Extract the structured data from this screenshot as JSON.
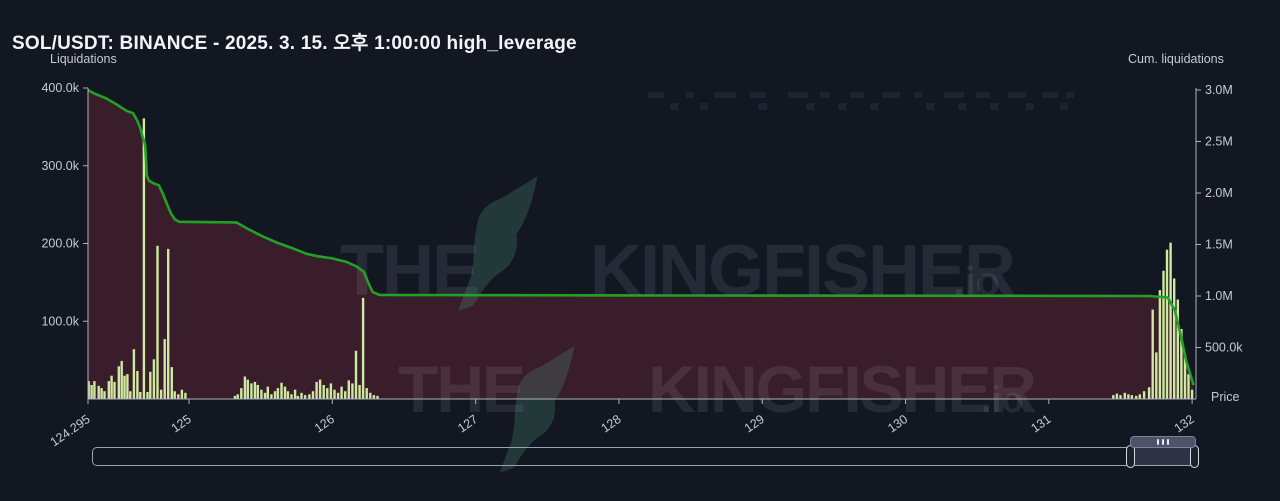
{
  "header": {
    "title": "SOL/USDT: BINANCE - 2025. 3. 15. 오후 1:00:00 high_leverage"
  },
  "colors": {
    "background": "#131722",
    "bar": "#cfe8a2",
    "line": "#21a126",
    "area_fill": "#3a1d2a",
    "axis": "#aab0c0",
    "tick_text": "#c6cad4",
    "watermark_text": "rgba(210,217,232,0.10)",
    "watermark_bird": "rgba(80,145,120,0.28)",
    "dash_decoration": "#1e2334"
  },
  "watermark": {
    "upper": {
      "pre": "THE",
      "main": "KINGFISHER",
      "suffix": ".io"
    },
    "lower": {
      "pre": "THE",
      "main": "KINGFISHER",
      "suffix": ".io"
    }
  },
  "chart_data": {
    "type": "mixed",
    "title": "SOL/USDT: BINANCE - 2025. 3. 15. 오후 1:00:00 high_leverage",
    "xlabel": "Price",
    "legend_position": "none",
    "grid": false,
    "x_axis": {
      "label": "Price",
      "range": [
        124.295,
        132.03
      ],
      "ticks": [
        {
          "label": "124.295",
          "value": 124.295
        },
        {
          "label": "125",
          "value": 125
        },
        {
          "label": "126",
          "value": 126
        },
        {
          "label": "127",
          "value": 127
        },
        {
          "label": "128",
          "value": 128
        },
        {
          "label": "129",
          "value": 129
        },
        {
          "label": "130",
          "value": 130
        },
        {
          "label": "131",
          "value": 131
        },
        {
          "label": "132",
          "value": 132
        }
      ]
    },
    "left_axis": {
      "label": "Liquidations",
      "unit": "thousand",
      "range": [
        0,
        400000
      ],
      "ticks": [
        {
          "label": "400.0k",
          "value": 400
        },
        {
          "label": "300.0k",
          "value": 300
        },
        {
          "label": "200.0k",
          "value": 200
        },
        {
          "label": "100.0k",
          "value": 100
        }
      ]
    },
    "right_axis": {
      "label": "Cum. liquidations",
      "unit": "million",
      "range": [
        0,
        3000000
      ],
      "ticks": [
        {
          "label": "3.0M",
          "value": 3.0
        },
        {
          "label": "2.5M",
          "value": 2.5
        },
        {
          "label": "2.0M",
          "value": 2.0
        },
        {
          "label": "1.5M",
          "value": 1.5
        },
        {
          "label": "1.0M",
          "value": 1.0
        },
        {
          "label": "500.0k",
          "value": 0.5
        }
      ]
    },
    "series": [
      {
        "name": "Cum. liquidations",
        "type": "area-line",
        "axis": "right",
        "points": [
          [
            124.295,
            3.0
          ],
          [
            124.34,
            2.965
          ],
          [
            124.42,
            2.92
          ],
          [
            124.5,
            2.855
          ],
          [
            124.56,
            2.8
          ],
          [
            124.61,
            2.775
          ],
          [
            124.64,
            2.7
          ],
          [
            124.66,
            2.63
          ],
          [
            124.675,
            2.55
          ],
          [
            124.69,
            2.49
          ],
          [
            124.695,
            2.45
          ],
          [
            124.705,
            2.17
          ],
          [
            124.72,
            2.12
          ],
          [
            124.75,
            2.095
          ],
          [
            124.79,
            2.075
          ],
          [
            124.82,
            1.985
          ],
          [
            124.85,
            1.88
          ],
          [
            124.875,
            1.8
          ],
          [
            124.9,
            1.745
          ],
          [
            124.93,
            1.72
          ],
          [
            125.33,
            1.715
          ],
          [
            125.42,
            1.645
          ],
          [
            125.52,
            1.575
          ],
          [
            125.62,
            1.515
          ],
          [
            125.72,
            1.465
          ],
          [
            125.82,
            1.41
          ],
          [
            125.9,
            1.385
          ],
          [
            126.0,
            1.365
          ],
          [
            126.1,
            1.33
          ],
          [
            126.17,
            1.285
          ],
          [
            126.22,
            1.235
          ],
          [
            126.25,
            1.13
          ],
          [
            126.28,
            1.04
          ],
          [
            126.33,
            1.01
          ],
          [
            128.5,
            1.005
          ],
          [
            131.7,
            1.0
          ],
          [
            131.83,
            0.985
          ],
          [
            131.88,
            0.86
          ],
          [
            131.92,
            0.62
          ],
          [
            131.96,
            0.36
          ],
          [
            132.01,
            0.135
          ]
        ]
      },
      {
        "name": "Liquidations",
        "type": "bar",
        "axis": "left",
        "points": [
          [
            124.3,
            23
          ],
          [
            124.32,
            18
          ],
          [
            124.34,
            23
          ],
          [
            124.37,
            17
          ],
          [
            124.39,
            14
          ],
          [
            124.41,
            10
          ],
          [
            124.44,
            23
          ],
          [
            124.46,
            30
          ],
          [
            124.48,
            22
          ],
          [
            124.51,
            42
          ],
          [
            124.53,
            49
          ],
          [
            124.55,
            30
          ],
          [
            124.57,
            32
          ],
          [
            124.59,
            10
          ],
          [
            124.615,
            64
          ],
          [
            124.64,
            36
          ],
          [
            124.66,
            9
          ],
          [
            124.685,
            361
          ],
          [
            124.71,
            9
          ],
          [
            124.73,
            35
          ],
          [
            124.755,
            51
          ],
          [
            124.78,
            197
          ],
          [
            124.805,
            12
          ],
          [
            124.83,
            77
          ],
          [
            124.855,
            193
          ],
          [
            124.88,
            41
          ],
          [
            124.9,
            10
          ],
          [
            124.925,
            6
          ],
          [
            124.95,
            12
          ],
          [
            124.975,
            8
          ],
          [
            125.32,
            4
          ],
          [
            125.34,
            6
          ],
          [
            125.365,
            14
          ],
          [
            125.39,
            29
          ],
          [
            125.41,
            25
          ],
          [
            125.435,
            20
          ],
          [
            125.46,
            22
          ],
          [
            125.48,
            18
          ],
          [
            125.505,
            12
          ],
          [
            125.53,
            8
          ],
          [
            125.55,
            16
          ],
          [
            125.575,
            6
          ],
          [
            125.6,
            10
          ],
          [
            125.62,
            14
          ],
          [
            125.645,
            21
          ],
          [
            125.67,
            16
          ],
          [
            125.69,
            10
          ],
          [
            125.715,
            6
          ],
          [
            125.74,
            12
          ],
          [
            125.76,
            4
          ],
          [
            125.785,
            8
          ],
          [
            125.81,
            5
          ],
          [
            125.84,
            6
          ],
          [
            125.865,
            10
          ],
          [
            125.89,
            22
          ],
          [
            125.915,
            25
          ],
          [
            125.94,
            18
          ],
          [
            125.965,
            14
          ],
          [
            125.99,
            20
          ],
          [
            126.015,
            12
          ],
          [
            126.04,
            8
          ],
          [
            126.065,
            16
          ],
          [
            126.09,
            10
          ],
          [
            126.115,
            24
          ],
          [
            126.14,
            20
          ],
          [
            126.165,
            62
          ],
          [
            126.19,
            18
          ],
          [
            126.215,
            130
          ],
          [
            126.24,
            14
          ],
          [
            126.265,
            8
          ],
          [
            126.29,
            5
          ],
          [
            126.315,
            4
          ],
          [
            131.45,
            5
          ],
          [
            131.475,
            7
          ],
          [
            131.5,
            5
          ],
          [
            131.53,
            8
          ],
          [
            131.555,
            6
          ],
          [
            131.58,
            5
          ],
          [
            131.61,
            4
          ],
          [
            131.635,
            6
          ],
          [
            131.665,
            10
          ],
          [
            131.7,
            15
          ],
          [
            131.725,
            115
          ],
          [
            131.75,
            60
          ],
          [
            131.775,
            140
          ],
          [
            131.8,
            165
          ],
          [
            131.825,
            192
          ],
          [
            131.85,
            201
          ],
          [
            131.875,
            155
          ],
          [
            131.9,
            128
          ],
          [
            131.925,
            90
          ],
          [
            131.95,
            58
          ],
          [
            131.975,
            32
          ],
          [
            132.0,
            12
          ]
        ]
      }
    ],
    "decoration_dashes": {
      "row1_y": 92,
      "row1": [
        [
          648,
          16
        ],
        [
          686,
          8
        ],
        [
          714,
          22
        ],
        [
          750,
          16
        ],
        [
          788,
          20
        ],
        [
          820,
          10
        ],
        [
          850,
          14
        ],
        [
          882,
          18
        ],
        [
          914,
          8
        ],
        [
          944,
          20
        ],
        [
          976,
          14
        ],
        [
          1008,
          18
        ],
        [
          1042,
          16
        ],
        [
          1066,
          8
        ]
      ],
      "row2_y": 103,
      "row2": [
        [
          670,
          8
        ],
        [
          700,
          8
        ],
        [
          758,
          9
        ],
        [
          806,
          8
        ],
        [
          838,
          8
        ],
        [
          870,
          8
        ],
        [
          926,
          8
        ],
        [
          958,
          8
        ],
        [
          990,
          8
        ],
        [
          1026,
          8
        ],
        [
          1060,
          8
        ]
      ]
    }
  }
}
